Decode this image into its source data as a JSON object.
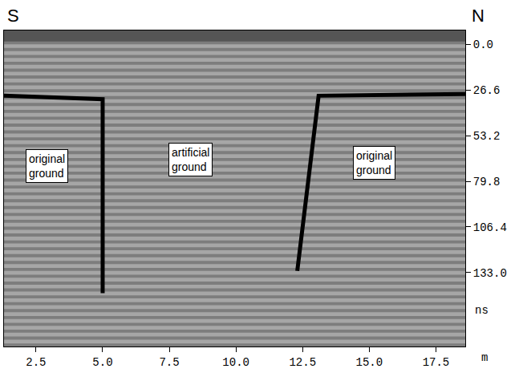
{
  "chart_data": {
    "type": "radargram",
    "corner_labels": {
      "left": "S",
      "right": "N"
    },
    "x_label": "m",
    "y_label": "ns",
    "xlim": [
      1.3,
      18.6
    ],
    "xticks": [
      2.5,
      {
        "value": 5,
        "label": "5.0"
      },
      7.5,
      {
        "value": 10,
        "label": "10.0"
      },
      12.5,
      {
        "value": 15,
        "label": "15.0"
      },
      17.5
    ],
    "ylim": [
      176,
      -8
    ],
    "yticks": [
      {
        "value": 0,
        "label": "0.0"
      },
      26.6,
      53.2,
      79.8,
      106.4,
      {
        "value": 133,
        "label": "133.0"
      }
    ],
    "grid": false,
    "color": "#000000",
    "lines": [
      {
        "x": [
          1.3,
          5.0,
          5.0
        ],
        "y": [
          30,
          32,
          145
        ]
      },
      {
        "x": [
          12.3,
          13.1,
          18.6
        ],
        "y": [
          132,
          30,
          29
        ]
      }
    ],
    "annotations": [
      {
        "text": "original ground",
        "x": 2.9,
        "y": 71
      },
      {
        "text": "artificial ground",
        "x": 8.3,
        "y": 67
      },
      {
        "text": "original ground",
        "x": 15.2,
        "y": 69
      }
    ]
  }
}
